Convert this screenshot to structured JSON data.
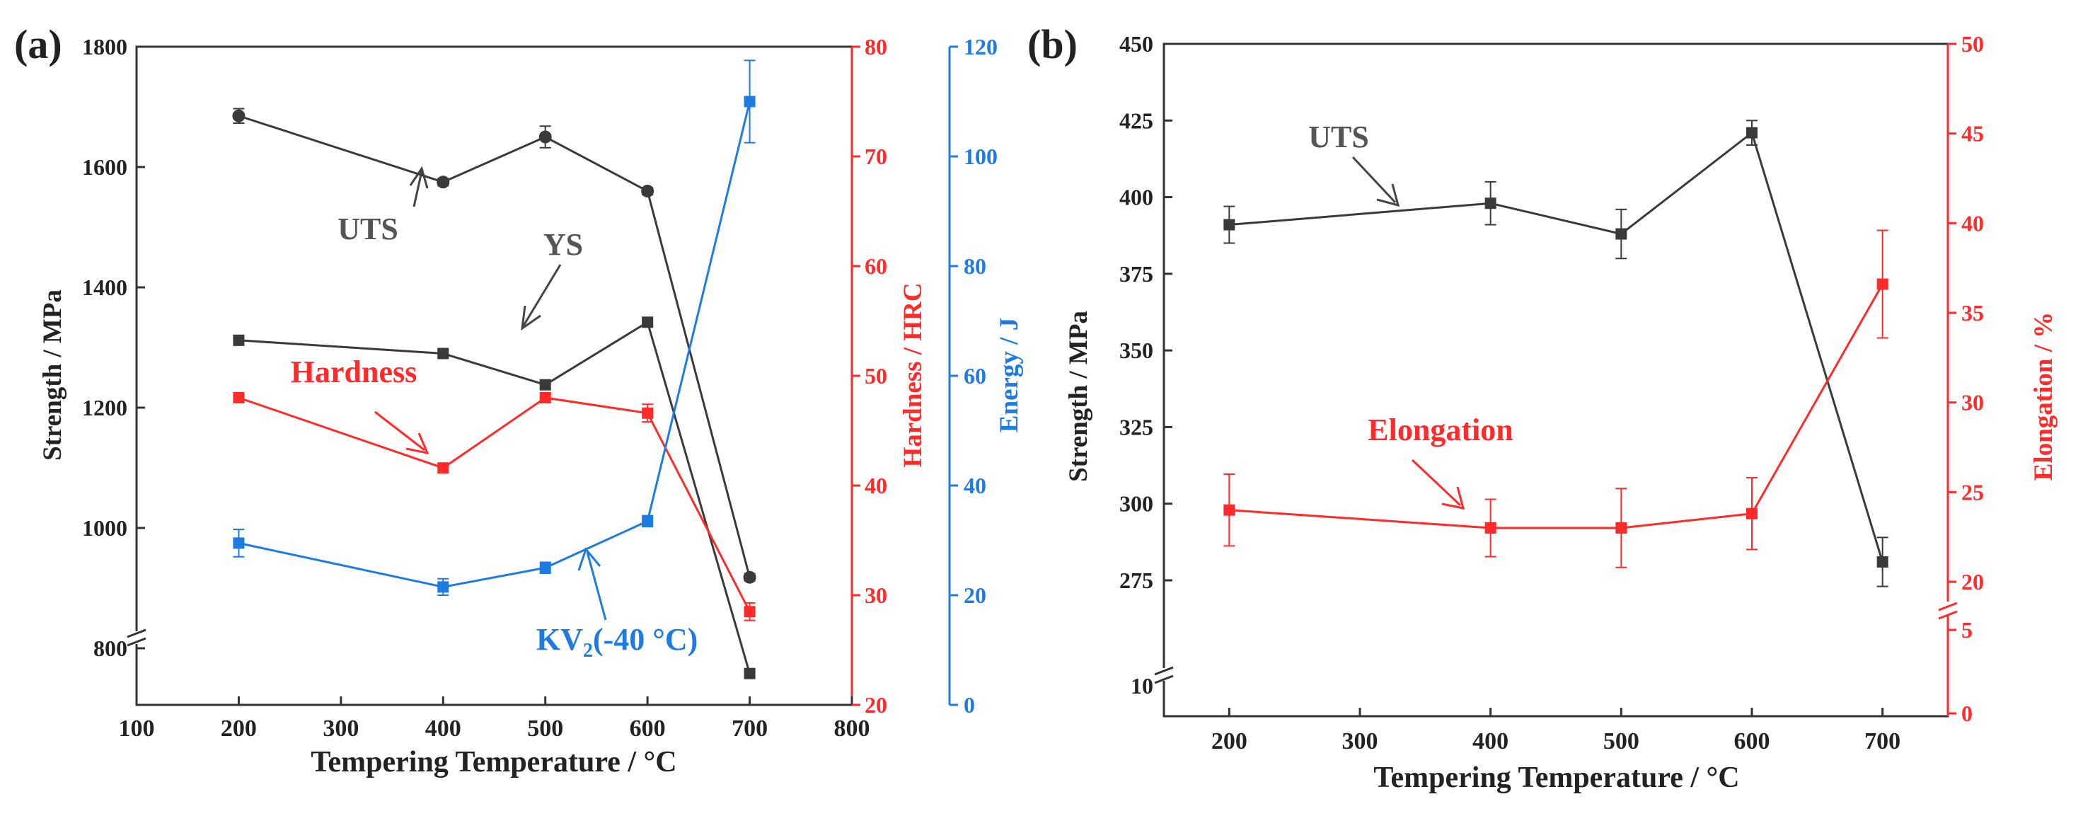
{
  "colors": {
    "black": "#3a3a3a",
    "red": "#ff2a2a",
    "blue": "#1e7be0"
  },
  "chart_data": [
    {
      "type": "line",
      "panel_label": "(a)",
      "xlabel": "Tempering Temperature / °C",
      "xlim": [
        100,
        800
      ],
      "xticks": [
        "100",
        "200",
        "300",
        "400",
        "500",
        "600",
        "700",
        "800"
      ],
      "axes": {
        "strength": {
          "label": "Strength / MPa",
          "ticks": [
            "800",
            "1000",
            "1200",
            "1400",
            "1600",
            "1800"
          ],
          "range": [
            700,
            1800
          ]
        },
        "hardness": {
          "label": "Hardness / HRC",
          "ticks": [
            "20",
            "30",
            "40",
            "50",
            "60",
            "70",
            "80"
          ],
          "range": [
            20,
            80
          ]
        },
        "energy": {
          "label": "Energy / J",
          "ticks": [
            "0",
            "20",
            "40",
            "60",
            "80",
            "100",
            "120"
          ],
          "range": [
            0,
            120
          ]
        }
      },
      "series": [
        {
          "name": "UTS",
          "axis": "strength",
          "color": "black",
          "marker": "circle",
          "x": [
            200,
            400,
            500,
            600,
            700
          ],
          "y": [
            1685,
            1575,
            1650,
            1560,
            918
          ],
          "err": [
            12,
            6,
            18,
            6,
            6
          ]
        },
        {
          "name": "YS",
          "axis": "strength",
          "color": "black",
          "marker": "square",
          "x": [
            200,
            400,
            500,
            600,
            700
          ],
          "y": [
            1312,
            1290,
            1238,
            1342,
            758
          ],
          "err": [
            8,
            6,
            6,
            6,
            6
          ]
        },
        {
          "name": "Hardness",
          "axis": "hardness",
          "color": "red",
          "marker": "square",
          "x": [
            200,
            400,
            500,
            600,
            700
          ],
          "y": [
            48.0,
            41.6,
            48.0,
            46.6,
            28.5
          ],
          "err": [
            0.4,
            0.4,
            0.4,
            0.8,
            0.8
          ]
        },
        {
          "name": "KV2(-40 °C)",
          "axis": "energy",
          "color": "blue",
          "marker": "square",
          "x": [
            200,
            400,
            500,
            600,
            700
          ],
          "y": [
            29.5,
            21.5,
            25.0,
            33.5,
            110.0
          ],
          "err": [
            2.5,
            1.5,
            1.0,
            1.0,
            7.5
          ]
        }
      ],
      "annotations": {
        "uts": "UTS",
        "ys": "YS",
        "hardness": "Hardness",
        "kv_main": "KV",
        "kv_sub": "2",
        "kv_rest": "(-40 °C)"
      }
    },
    {
      "type": "line",
      "panel_label": "(b)",
      "xlabel": "Tempering Temperature / °C",
      "xlim": [
        150,
        750
      ],
      "xticks": [
        "200",
        "300",
        "400",
        "500",
        "600",
        "700"
      ],
      "axes": {
        "strength": {
          "label": "Strength / MPa",
          "ticks": [
            "275",
            "300",
            "325",
            "350",
            "375",
            "400",
            "425",
            "450"
          ],
          "range": [
            262,
            450
          ],
          "broken_tick": "10"
        },
        "elongation": {
          "label": "Elongation / %",
          "ticks": [
            "20",
            "25",
            "30",
            "35",
            "40",
            "45",
            "50"
          ],
          "range": [
            19,
            50
          ],
          "broken_ticks": [
            "0",
            "5"
          ]
        }
      },
      "series": [
        {
          "name": "UTS",
          "axis": "strength",
          "color": "black",
          "marker": "square",
          "x": [
            200,
            400,
            500,
            600,
            700
          ],
          "y": [
            391,
            398,
            388,
            421,
            281
          ],
          "err": [
            6,
            7,
            8,
            4,
            8
          ]
        },
        {
          "name": "Elongation",
          "axis": "elongation",
          "color": "red",
          "marker": "square",
          "x": [
            200,
            400,
            500,
            600,
            700
          ],
          "y": [
            24.0,
            23.0,
            23.0,
            23.8,
            36.6
          ],
          "err": [
            2.0,
            1.6,
            2.2,
            2.0,
            3.0
          ]
        }
      ],
      "annotations": {
        "uts": "UTS",
        "elongation": "Elongation"
      }
    }
  ]
}
